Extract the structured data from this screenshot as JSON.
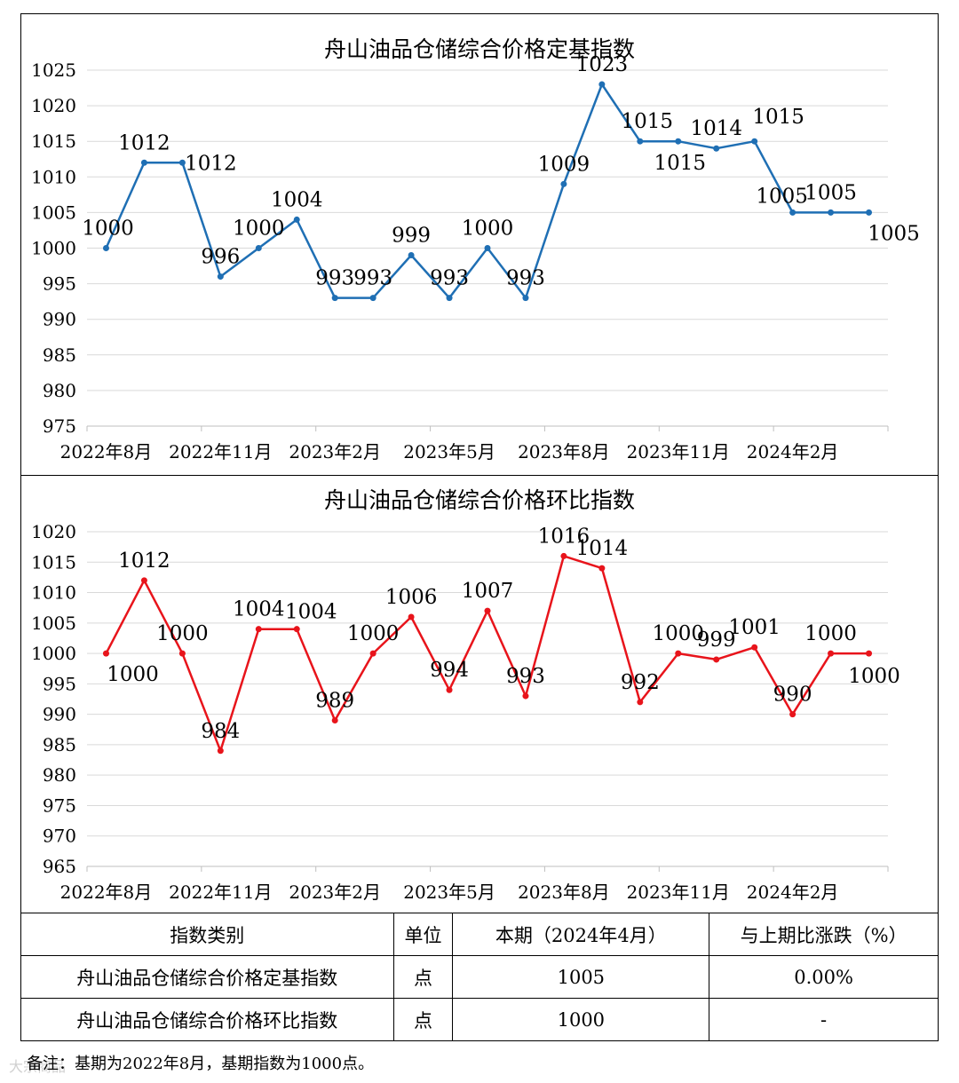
{
  "charts": {
    "fixed": {
      "chart_data": {
        "type": "line",
        "title": "舟山油品仓储综合价格定基指数",
        "x": [
          "2022年8月",
          "2022年9月",
          "2022年10月",
          "2022年11月",
          "2022年12月",
          "2023年1月",
          "2023年2月",
          "2023年3月",
          "2023年4月",
          "2023年5月",
          "2023年6月",
          "2023年7月",
          "2023年8月",
          "2023年9月",
          "2023年10月",
          "2023年11月",
          "2023年12月",
          "2024年1月",
          "2024年2月",
          "2024年3月",
          "2024年4月"
        ],
        "x_tick_labels": [
          "2022年8月",
          "2022年11月",
          "2023年2月",
          "2023年5月",
          "2023年8月",
          "2023年11月",
          "2024年2月"
        ],
        "values": [
          1000,
          1012,
          1012,
          996,
          1000,
          1004,
          993,
          993,
          999,
          993,
          1000,
          993,
          1009,
          1023,
          1015,
          1015,
          1014,
          1015,
          1005,
          1005,
          1005
        ],
        "ylim": [
          975,
          1025
        ],
        "ytick_step": 5,
        "series_color": "#1f6fb4",
        "grid": true,
        "xlabel": "",
        "ylabel": ""
      }
    },
    "chain": {
      "chart_data": {
        "type": "line",
        "title": "舟山油品仓储综合价格环比指数",
        "x": [
          "2022年8月",
          "2022年9月",
          "2022年10月",
          "2022年11月",
          "2022年12月",
          "2023年1月",
          "2023年2月",
          "2023年3月",
          "2023年4月",
          "2023年5月",
          "2023年6月",
          "2023年7月",
          "2023年8月",
          "2023年9月",
          "2023年10月",
          "2023年11月",
          "2023年12月",
          "2024年1月",
          "2024年2月",
          "2024年3月",
          "2024年4月"
        ],
        "x_tick_labels": [
          "2022年8月",
          "2022年11月",
          "2023年2月",
          "2023年5月",
          "2023年8月",
          "2023年11月",
          "2024年2月"
        ],
        "values": [
          1000,
          1012,
          1000,
          984,
          1004,
          1004,
          989,
          1000,
          1006,
          994,
          1007,
          993,
          1016,
          1014,
          992,
          1000,
          999,
          1001,
          990,
          1000,
          1000
        ],
        "ylim": [
          965,
          1020
        ],
        "ytick_step": 5,
        "series_color": "#e8141b",
        "grid": true,
        "xlabel": "",
        "ylabel": ""
      }
    }
  },
  "table": {
    "headers": [
      "指数类别",
      "单位",
      "本期（2024年4月）",
      "与上期比涨跌（%）"
    ],
    "rows": [
      [
        "舟山油品仓储综合价格定基指数",
        "点",
        "1005",
        "0.00%"
      ],
      [
        "舟山油品仓储综合价格环比指数",
        "点",
        "1000",
        "-"
      ]
    ]
  },
  "note": "备注：基期为2022年8月，基期指数为1000点。",
  "watermark": "大宗商品"
}
